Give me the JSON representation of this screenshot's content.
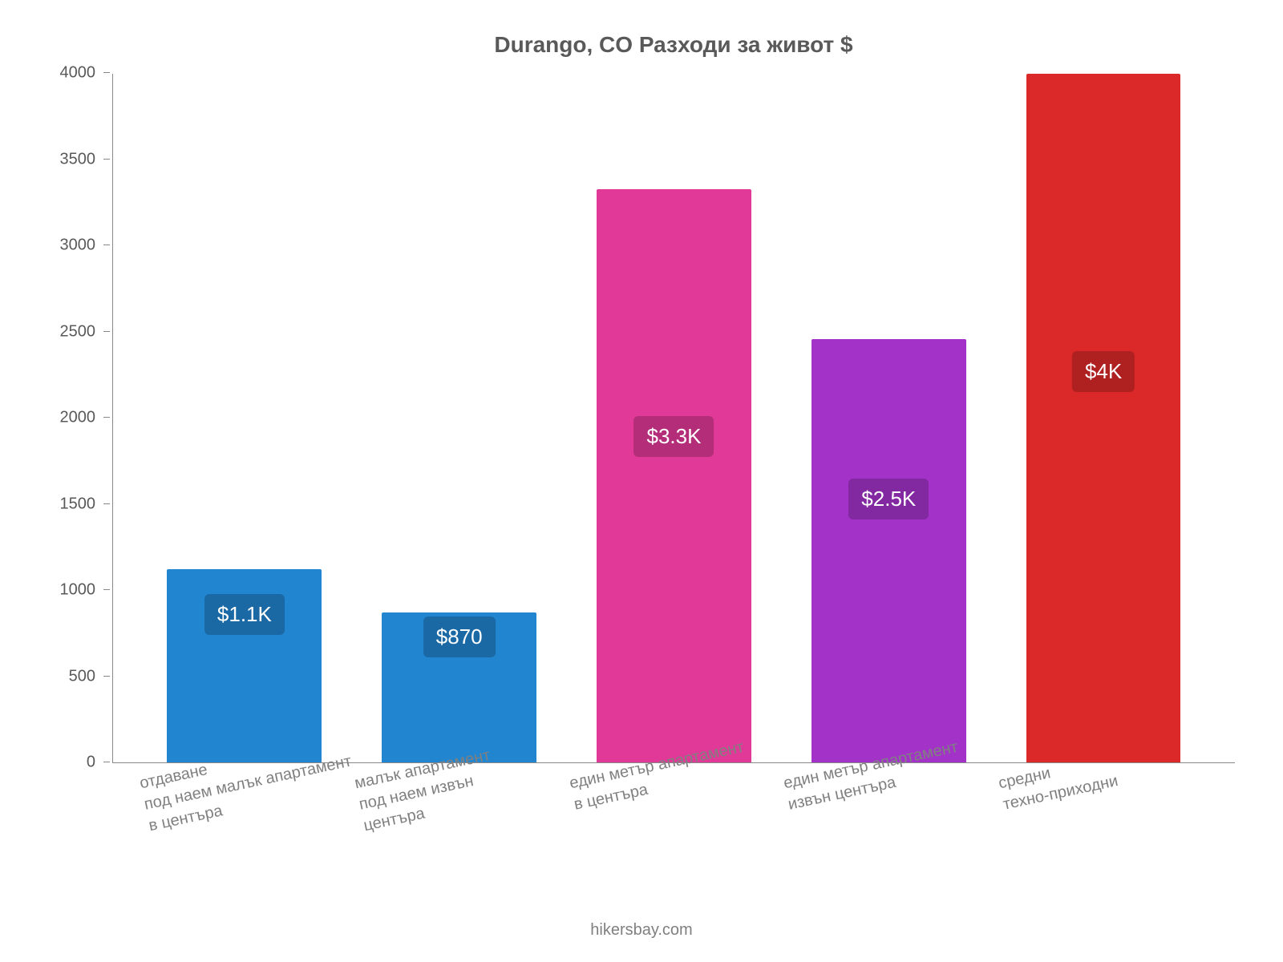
{
  "chart": {
    "type": "bar",
    "title": "Durango, CO Разходи за живот $",
    "title_color": "#595959",
    "title_fontsize": 28,
    "background_color": "#ffffff",
    "axis_color": "#888888",
    "label_color": "#808080",
    "tick_color": "#595959",
    "label_fontsize": 20,
    "bar_width_pct": 72,
    "ylim": [
      0,
      4000
    ],
    "ytick_step": 500,
    "yticks": [
      {
        "v": 0,
        "label": "0"
      },
      {
        "v": 500,
        "label": "500"
      },
      {
        "v": 1000,
        "label": "1000"
      },
      {
        "v": 1500,
        "label": "1500"
      },
      {
        "v": 2000,
        "label": "2000"
      },
      {
        "v": 2500,
        "label": "2500"
      },
      {
        "v": 3000,
        "label": "3000"
      },
      {
        "v": 3500,
        "label": "3500"
      },
      {
        "v": 4000,
        "label": "4000"
      }
    ],
    "bars": [
      {
        "category": "отдаване\nпод наем малък апартамент\nв центъра",
        "value": 1120,
        "display": "$1.1K",
        "bar_color": "#2185d0",
        "badge_bg": "#1a69a4",
        "badge_fg": "#ffffff",
        "badge_y": 740
      },
      {
        "category": "малък апартамент\nпод наем извън\nцентъра",
        "value": 870,
        "display": "$870",
        "bar_color": "#2185d0",
        "badge_bg": "#1a69a4",
        "badge_fg": "#ffffff",
        "badge_y": 610
      },
      {
        "category": "един метър апартамент\nв центъра",
        "value": 3330,
        "display": "$3.3K",
        "bar_color": "#e03997",
        "badge_bg": "#b32d79",
        "badge_fg": "#ffffff",
        "badge_y": 1770
      },
      {
        "category": "един метър апартамент\nизвън центъра",
        "value": 2460,
        "display": "$2.5K",
        "bar_color": "#a333c8",
        "badge_bg": "#8228a0",
        "badge_fg": "#ffffff",
        "badge_y": 1410
      },
      {
        "category": "средни\nтехно-приходни",
        "value": 4000,
        "display": "$4K",
        "bar_color": "#db2828",
        "badge_bg": "#af2020",
        "badge_fg": "#ffffff",
        "badge_y": 2150
      }
    ],
    "credit": "hikersbay.com"
  }
}
